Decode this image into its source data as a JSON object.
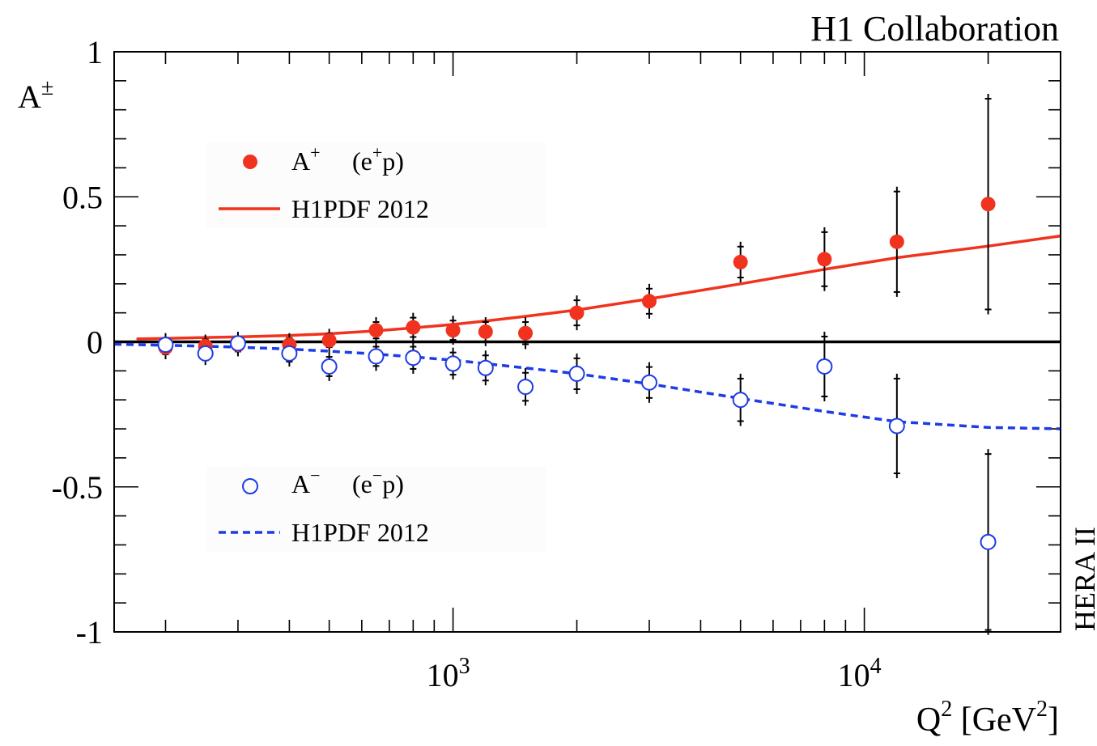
{
  "header": {
    "collaboration": "H1 Collaboration",
    "side_label": "HERA II"
  },
  "chart_data": {
    "type": "scatter",
    "title": "",
    "xlabel": {
      "base": "Q",
      "sup1": "2",
      "units_open": " [GeV",
      "sup2": "2",
      "units_close": "]"
    },
    "ylabel": {
      "base": "A",
      "sup": "±"
    },
    "xscale": "log",
    "xlim": [
      150,
      30000
    ],
    "ylim": [
      -1,
      1
    ],
    "x_tick_labels": [
      {
        "value": 1000,
        "base": "10",
        "exp": "3"
      },
      {
        "value": 10000,
        "base": "10",
        "exp": "4"
      }
    ],
    "y_tick_labels": [
      {
        "value": 1,
        "label": "1"
      },
      {
        "value": 0.5,
        "label": "0.5"
      },
      {
        "value": 0,
        "label": "0"
      },
      {
        "value": -0.5,
        "label": "-0.5"
      },
      {
        "value": -1,
        "label": "-1"
      }
    ],
    "grid": false,
    "legend_placement": "left",
    "colors": {
      "positive": "#f0321e",
      "negative": "#1e3ce6"
    },
    "series": [
      {
        "name": "A+ (e+p)",
        "legend": {
          "symbol": "A",
          "sup": "+",
          "reaction_open": "(e",
          "reaction_sup": "+",
          "reaction_close": "p)"
        },
        "marker": "filled-circle",
        "points": [
          {
            "x": 200,
            "y": -0.02,
            "err_lo": 0.04,
            "err_hi": 0.04
          },
          {
            "x": 250,
            "y": -0.015,
            "err_lo": 0.04,
            "err_hi": 0.04
          },
          {
            "x": 300,
            "y": -0.01,
            "err_lo": 0.04,
            "err_hi": 0.04
          },
          {
            "x": 400,
            "y": -0.01,
            "err_lo": 0.04,
            "err_hi": 0.04
          },
          {
            "x": 500,
            "y": 0.005,
            "err_lo": 0.04,
            "err_hi": 0.04
          },
          {
            "x": 650,
            "y": 0.04,
            "err_lo": 0.045,
            "err_hi": 0.045
          },
          {
            "x": 800,
            "y": 0.05,
            "err_lo": 0.05,
            "err_hi": 0.05
          },
          {
            "x": 1000,
            "y": 0.04,
            "err_lo": 0.05,
            "err_hi": 0.05
          },
          {
            "x": 1200,
            "y": 0.035,
            "err_lo": 0.05,
            "err_hi": 0.05
          },
          {
            "x": 1500,
            "y": 0.03,
            "err_lo": 0.055,
            "err_hi": 0.055
          },
          {
            "x": 2000,
            "y": 0.1,
            "err_lo": 0.06,
            "err_hi": 0.06
          },
          {
            "x": 3000,
            "y": 0.14,
            "err_lo": 0.06,
            "err_hi": 0.06
          },
          {
            "x": 5000,
            "y": 0.275,
            "err_lo": 0.07,
            "err_hi": 0.07
          },
          {
            "x": 8000,
            "y": 0.285,
            "err_lo": 0.11,
            "err_hi": 0.11
          },
          {
            "x": 12000,
            "y": 0.345,
            "err_lo": 0.19,
            "err_hi": 0.19
          },
          {
            "x": 20000,
            "y": 0.475,
            "err_lo": 0.38,
            "err_hi": 0.38
          }
        ]
      },
      {
        "name": "A− (e−p)",
        "legend": {
          "symbol": "A",
          "sup": "−",
          "reaction_open": "(e",
          "reaction_sup": "−",
          "reaction_close": "p)"
        },
        "marker": "open-circle",
        "points": [
          {
            "x": 200,
            "y": -0.01,
            "err_lo": 0.04,
            "err_hi": 0.04
          },
          {
            "x": 250,
            "y": -0.04,
            "err_lo": 0.04,
            "err_hi": 0.04
          },
          {
            "x": 300,
            "y": -0.005,
            "err_lo": 0.04,
            "err_hi": 0.04
          },
          {
            "x": 400,
            "y": -0.04,
            "err_lo": 0.045,
            "err_hi": 0.045
          },
          {
            "x": 500,
            "y": -0.085,
            "err_lo": 0.05,
            "err_hi": 0.05
          },
          {
            "x": 650,
            "y": -0.05,
            "err_lo": 0.05,
            "err_hi": 0.05
          },
          {
            "x": 800,
            "y": -0.055,
            "err_lo": 0.055,
            "err_hi": 0.055
          },
          {
            "x": 1000,
            "y": -0.075,
            "err_lo": 0.055,
            "err_hi": 0.055
          },
          {
            "x": 1200,
            "y": -0.09,
            "err_lo": 0.06,
            "err_hi": 0.06
          },
          {
            "x": 1500,
            "y": -0.155,
            "err_lo": 0.065,
            "err_hi": 0.065
          },
          {
            "x": 2000,
            "y": -0.11,
            "err_lo": 0.07,
            "err_hi": 0.07
          },
          {
            "x": 3000,
            "y": -0.14,
            "err_lo": 0.07,
            "err_hi": 0.07
          },
          {
            "x": 5000,
            "y": -0.2,
            "err_lo": 0.09,
            "err_hi": 0.09
          },
          {
            "x": 8000,
            "y": -0.085,
            "err_lo": 0.12,
            "err_hi": 0.12
          },
          {
            "x": 12000,
            "y": -0.29,
            "err_lo": 0.18,
            "err_hi": 0.18
          },
          {
            "x": 20000,
            "y": -0.69,
            "err_lo": 0.32,
            "err_hi": 0.32
          }
        ]
      }
    ],
    "curves": [
      {
        "name": "H1PDF 2012",
        "style": "solid",
        "color_key": "positive",
        "x": [
          170,
          200,
          250,
          300,
          400,
          500,
          650,
          800,
          1000,
          1200,
          1500,
          2000,
          3000,
          5000,
          8000,
          12000,
          20000,
          30000
        ],
        "y": [
          0.01,
          0.012,
          0.015,
          0.017,
          0.022,
          0.028,
          0.038,
          0.048,
          0.06,
          0.072,
          0.088,
          0.11,
          0.148,
          0.2,
          0.25,
          0.29,
          0.33,
          0.365
        ]
      },
      {
        "name": "H1PDF 2012",
        "style": "dashed",
        "color_key": "negative",
        "x": [
          150,
          200,
          250,
          300,
          400,
          500,
          650,
          800,
          1000,
          1200,
          1500,
          2000,
          3000,
          5000,
          8000,
          12000,
          20000,
          30000
        ],
        "y": [
          -0.008,
          -0.012,
          -0.015,
          -0.018,
          -0.025,
          -0.032,
          -0.042,
          -0.052,
          -0.063,
          -0.075,
          -0.09,
          -0.11,
          -0.145,
          -0.195,
          -0.24,
          -0.275,
          -0.295,
          -0.3
        ]
      }
    ]
  }
}
